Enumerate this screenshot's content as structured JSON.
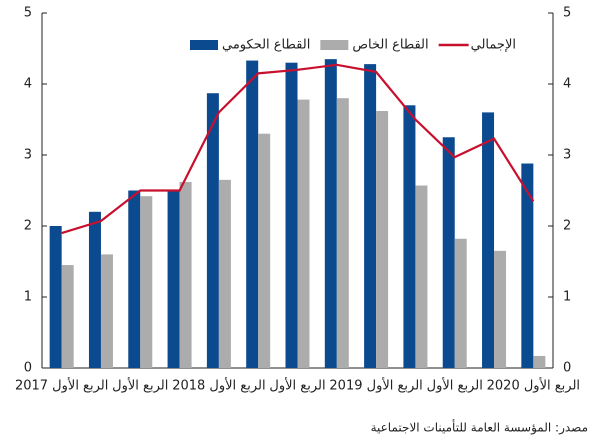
{
  "chart_data": {
    "type": "bar",
    "categories": [
      "الربع الأول 2017",
      null,
      "الربع الأول",
      null,
      "الربع الأول 2018",
      null,
      "الربع الأول",
      null,
      "الربع الأول 2019",
      null,
      "الربع الأول",
      null,
      "الربع الأول 2020"
    ],
    "series": [
      {
        "name": "القطاع الحكومي",
        "color": "#0b4a8f",
        "type": "bar",
        "values": [
          2.0,
          2.2,
          2.5,
          2.5,
          3.87,
          4.33,
          4.3,
          4.35,
          4.28,
          3.7,
          3.25,
          3.6,
          2.88
        ]
      },
      {
        "name": "القطاع الخاص",
        "color": "#acacac",
        "type": "bar",
        "values": [
          1.45,
          1.6,
          2.42,
          2.62,
          2.65,
          3.3,
          3.78,
          3.8,
          3.62,
          2.57,
          1.82,
          1.65,
          0.17
        ]
      },
      {
        "name": "الإجمالي",
        "color": "#c8102e",
        "type": "line",
        "axis": "y2",
        "values": [
          1.9,
          2.07,
          2.5,
          2.5,
          3.6,
          4.15,
          4.2,
          4.27,
          4.17,
          3.5,
          2.97,
          3.23,
          2.35
        ]
      }
    ],
    "ylim": [
      0,
      5
    ],
    "yticks": [
      0,
      1,
      2,
      3,
      4,
      5
    ],
    "y2lim": [
      0,
      5
    ],
    "y2ticks": [
      0,
      1,
      2,
      3,
      4,
      5
    ],
    "source": "مصدر: المؤسسة العامة للتأمينات الاجتماعية"
  }
}
